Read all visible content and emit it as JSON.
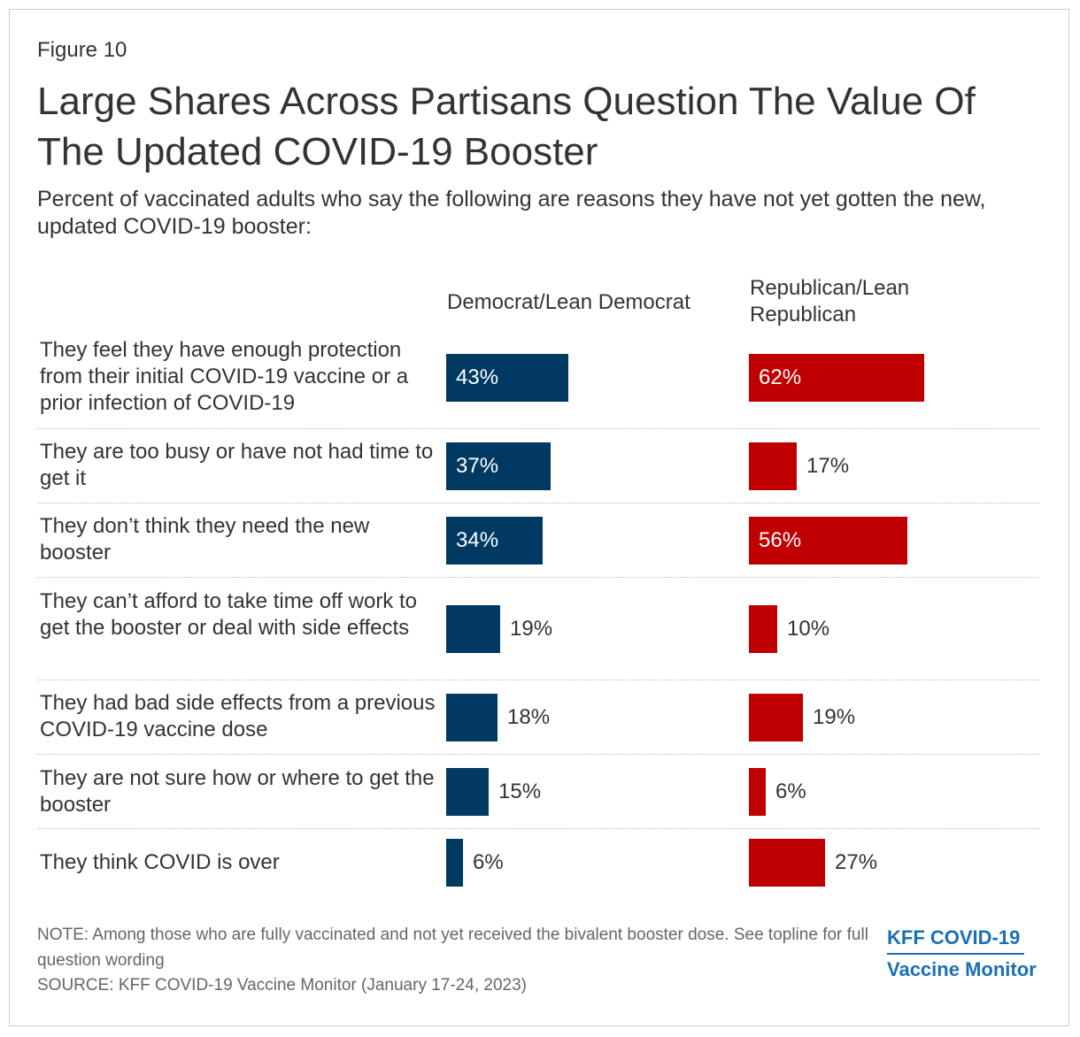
{
  "figure_label": "Figure 10",
  "title": "Large Shares Across Partisans Question The Value Of The Updated COVID-19 Booster",
  "subtitle": "Percent of vaccinated adults who say the following are reasons they have not yet gotten the new, updated COVID-19 booster:",
  "colors": {
    "democrat": "#003a63",
    "republican": "#c00000",
    "text": "#333333",
    "note": "#666666",
    "logo": "#1a6fb5"
  },
  "chart_data": {
    "type": "bar",
    "orientation": "horizontal",
    "unit": "%",
    "categories": [
      "They feel they have enough protection from their initial COVID-19 vaccine or a prior infection of COVID-19",
      "They are too busy or have not had time to get it",
      "They don’t think they need the new booster",
      "They can’t afford to take time off work to get the booster or deal with side effects",
      "They had bad side effects from a previous COVID-19 vaccine dose",
      "They are not sure how or where to get the booster",
      "They think COVID is over"
    ],
    "series": [
      {
        "name": "Democrat/Lean Democrat",
        "values": [
          43,
          37,
          34,
          19,
          18,
          15,
          6
        ]
      },
      {
        "name": "Republican/Lean Republican",
        "values": [
          62,
          17,
          56,
          10,
          19,
          6,
          27
        ]
      }
    ],
    "xlim": [
      0,
      100
    ]
  },
  "footer": {
    "note": "NOTE: Among those who are fully vaccinated and not yet received the bivalent booster dose. See topline for full question wording",
    "source": "SOURCE: KFF COVID-19 Vaccine Monitor (January 17-24, 2023)",
    "logo_line1": "KFF COVID-19",
    "logo_line2": "Vaccine Monitor"
  }
}
